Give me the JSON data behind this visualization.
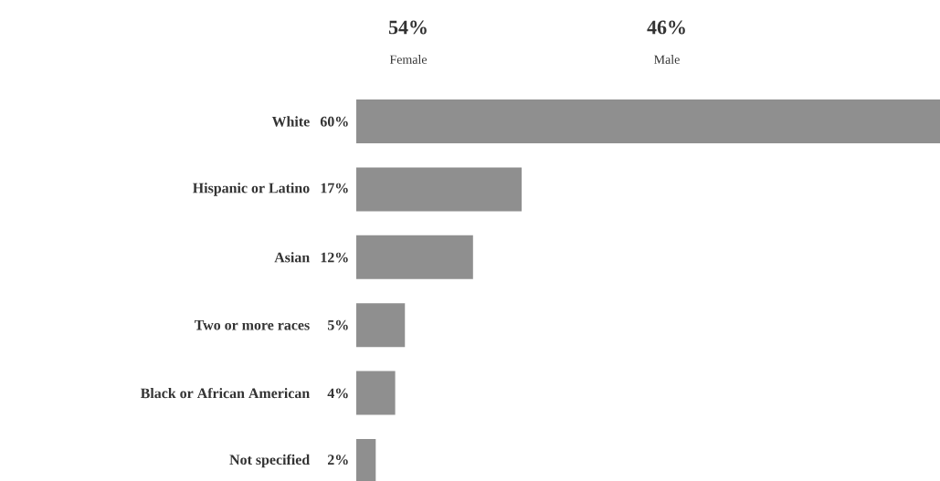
{
  "chart_data": {
    "type": "bar",
    "orientation": "horizontal",
    "categories": [
      "White",
      "Hispanic or Latino",
      "Asian",
      "Two or more races",
      "Black or African American",
      "Not specified"
    ],
    "values": [
      60,
      17,
      12,
      5,
      4,
      2
    ],
    "value_labels": [
      "60%",
      "17%",
      "12%",
      "5%",
      "4%",
      "2%"
    ],
    "color": "#8f8f8f",
    "tick_labels": "y",
    "annotations": [
      "54%",
      "Female",
      "46%",
      "Male"
    ]
  }
}
